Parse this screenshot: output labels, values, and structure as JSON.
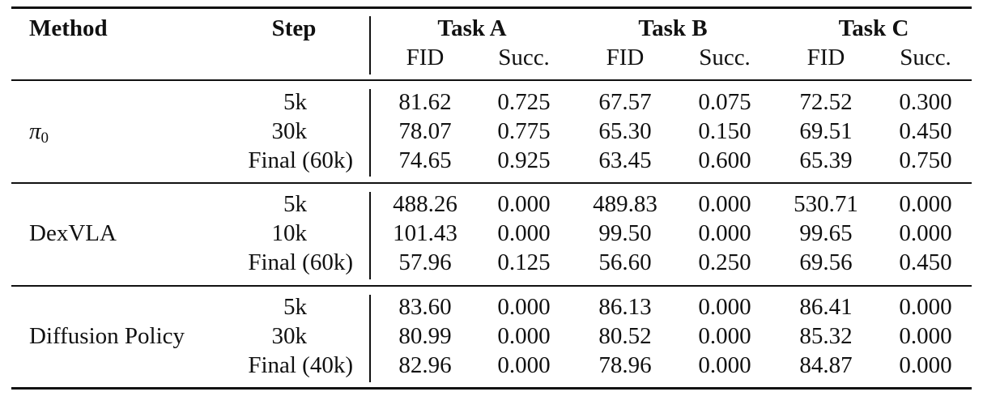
{
  "header": {
    "method": "Method",
    "step": "Step",
    "tasks": [
      "Task A",
      "Task B",
      "Task C"
    ],
    "metric_fid": "FID",
    "metric_succ": "Succ."
  },
  "groups": [
    {
      "method": "π",
      "method_sub": "0",
      "rows": [
        {
          "step": "5k",
          "vals": [
            "81.62",
            "0.725",
            "67.57",
            "0.075",
            "72.52",
            "0.300"
          ]
        },
        {
          "step": "30k",
          "vals": [
            "78.07",
            "0.775",
            "65.30",
            "0.150",
            "69.51",
            "0.450"
          ]
        },
        {
          "step": "Final (60k)",
          "vals": [
            "74.65",
            "0.925",
            "63.45",
            "0.600",
            "65.39",
            "0.750"
          ]
        }
      ]
    },
    {
      "method": "DexVLA",
      "method_sub": "",
      "rows": [
        {
          "step": "5k",
          "vals": [
            "488.26",
            "0.000",
            "489.83",
            "0.000",
            "530.71",
            "0.000"
          ]
        },
        {
          "step": "10k",
          "vals": [
            "101.43",
            "0.000",
            "99.50",
            "0.000",
            "99.65",
            "0.000"
          ]
        },
        {
          "step": "Final (60k)",
          "vals": [
            "57.96",
            "0.125",
            "56.60",
            "0.250",
            "69.56",
            "0.450"
          ]
        }
      ]
    },
    {
      "method": "Diffusion Policy",
      "method_sub": "",
      "rows": [
        {
          "step": "5k",
          "vals": [
            "83.60",
            "0.000",
            "86.13",
            "0.000",
            "86.41",
            "0.000"
          ]
        },
        {
          "step": "30k",
          "vals": [
            "80.99",
            "0.000",
            "80.52",
            "0.000",
            "85.32",
            "0.000"
          ]
        },
        {
          "step": "Final (40k)",
          "vals": [
            "82.96",
            "0.000",
            "78.96",
            "0.000",
            "84.87",
            "0.000"
          ]
        }
      ]
    }
  ]
}
